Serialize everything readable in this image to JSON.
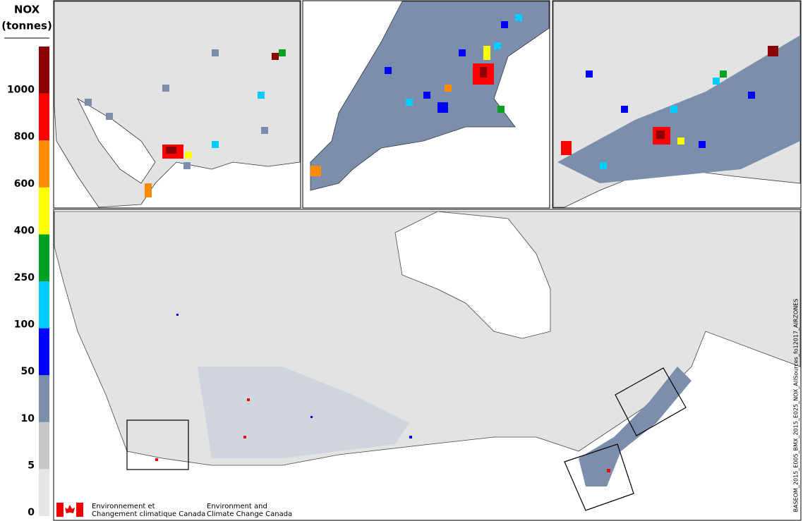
{
  "legend": {
    "title": [
      "NOX",
      "(tonnes)"
    ],
    "ticks": [
      0,
      5,
      10,
      50,
      100,
      250,
      400,
      600,
      800,
      1000
    ],
    "colors": [
      "#e6e6e6",
      "#c8c8c8",
      "#7b8fac",
      "#0000ff",
      "#00ccff",
      "#00a020",
      "#ffff00",
      "#ff8c00",
      "#ff0000",
      "#8b0000"
    ]
  },
  "footer": {
    "french": [
      "Environnement et",
      "Changement climatique Canada"
    ],
    "english": [
      "Environment and",
      "Climate Change Canada"
    ]
  },
  "side_label": "BASEOM_2015_E005_BMX_2015_E025_NOX_AllSources_fo12017_AIRZONES"
}
